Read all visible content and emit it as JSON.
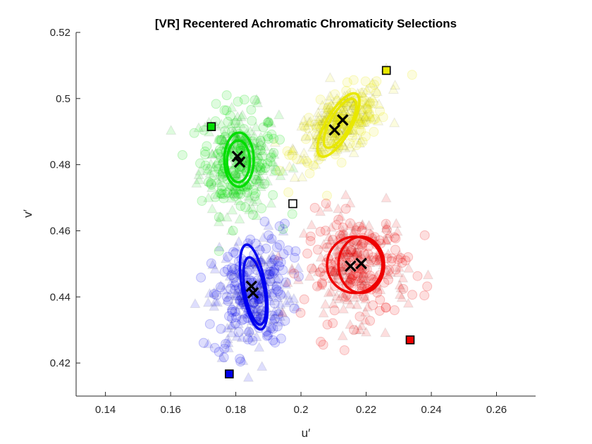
{
  "chart_data": {
    "type": "scatter",
    "title": "[VR] Recentered Achromatic Chromaticity Selections",
    "xlabel": "u′",
    "ylabel": "v′",
    "xlim": [
      0.131,
      0.272
    ],
    "ylim": [
      0.41,
      0.52
    ],
    "xticks": [
      "0.14",
      "0.16",
      "0.18",
      "0.2",
      "0.22",
      "0.24",
      "0.26"
    ],
    "yticks": [
      "0.42",
      "0.44",
      "0.46",
      "0.48",
      "0.5",
      "0.52"
    ],
    "grid": false,
    "clusters": [
      {
        "color": "#00dd00",
        "center": [
          0.181,
          0.481
        ],
        "spread": [
          0.006,
          0.008
        ],
        "corr": 0.0,
        "anchor": [
          0.1725,
          0.4915
        ],
        "means": [
          [
            0.1805,
            0.4825
          ],
          [
            0.1812,
            0.4808
          ]
        ],
        "ellipses": [
          {
            "center": [
              0.181,
              0.4815
            ],
            "radii": [
              0.0045,
              0.0082
            ],
            "tilt_deg": 0
          },
          {
            "center": [
              0.1808,
              0.481
            ],
            "radii": [
              0.0035,
              0.0063
            ],
            "tilt_deg": 0
          }
        ]
      },
      {
        "color": "#e8e800",
        "center": [
          0.212,
          0.492
        ],
        "spread": [
          0.007,
          0.006
        ],
        "corr": 0.6,
        "anchor": [
          0.2262,
          0.5085
        ],
        "means": [
          [
            0.2103,
            0.4905
          ],
          [
            0.2128,
            0.4935
          ]
        ],
        "ellipses": [
          {
            "center": [
              0.2115,
              0.492
            ],
            "radii": [
              0.011,
              0.0038
            ],
            "tilt_deg": 60
          },
          {
            "center": [
              0.212,
              0.4925
            ],
            "radii": [
              0.0085,
              0.003
            ],
            "tilt_deg": 60
          }
        ]
      },
      {
        "color": "#0000ee",
        "center": [
          0.185,
          0.441
        ],
        "spread": [
          0.006,
          0.009
        ],
        "corr": 0.2,
        "anchor": [
          0.178,
          0.4167
        ],
        "means": [
          [
            0.1848,
            0.4432
          ],
          [
            0.1853,
            0.4412
          ]
        ],
        "ellipses": [
          {
            "center": [
              0.1855,
              0.443
            ],
            "radii": [
              0.0036,
              0.013
            ],
            "tilt_deg": 10
          },
          {
            "center": [
              0.1858,
              0.4418
            ],
            "radii": [
              0.003,
              0.0103
            ],
            "tilt_deg": 10
          }
        ]
      },
      {
        "color": "#ee0000",
        "center": [
          0.217,
          0.449
        ],
        "spread": [
          0.008,
          0.008
        ],
        "corr": 0.0,
        "anchor": [
          0.2335,
          0.427
        ],
        "means": [
          [
            0.2152,
            0.4493
          ],
          [
            0.2185,
            0.4501
          ]
        ],
        "ellipses": [
          {
            "center": [
              0.2165,
              0.4497
            ],
            "radii": [
              0.0085,
              0.0085
            ],
            "tilt_deg": 0
          },
          {
            "center": [
              0.2185,
              0.4497
            ],
            "radii": [
              0.007,
              0.0085
            ],
            "tilt_deg": 0
          }
        ]
      }
    ],
    "white_anchor": [
      0.1975,
      0.4682
    ]
  }
}
